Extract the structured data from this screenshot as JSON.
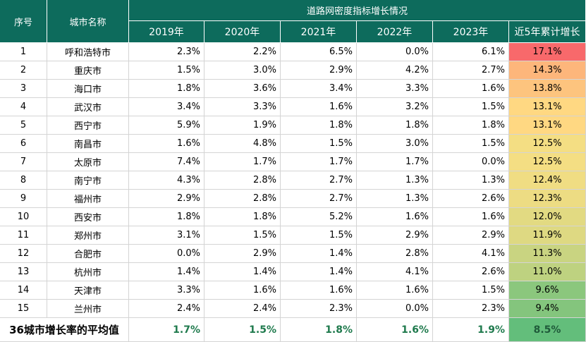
{
  "header": {
    "seq": "序号",
    "city": "城市名称",
    "group": "道路网密度指标增长情况",
    "years": [
      "2019年",
      "2020年",
      "2021年",
      "2022年",
      "2023年"
    ],
    "total": "近5年累计增长"
  },
  "rows": [
    {
      "seq": 1,
      "city": "呼和浩特市",
      "values": [
        2.3,
        2.2,
        6.5,
        0.0,
        6.1
      ],
      "value_labels": [
        "2.3%",
        "2.2%",
        "6.5%",
        "0.0%",
        "6.1%"
      ],
      "total": 17.1,
      "total_label": "17.1%"
    },
    {
      "seq": 2,
      "city": "重庆市",
      "values": [
        1.5,
        3.0,
        2.9,
        4.2,
        2.7
      ],
      "value_labels": [
        "1.5%",
        "3.0%",
        "2.9%",
        "4.2%",
        "2.7%"
      ],
      "total": 14.3,
      "total_label": "14.3%"
    },
    {
      "seq": 3,
      "city": "海口市",
      "values": [
        1.8,
        3.6,
        3.4,
        3.3,
        1.6
      ],
      "value_labels": [
        "1.8%",
        "3.6%",
        "3.4%",
        "3.3%",
        "1.6%"
      ],
      "total": 13.8,
      "total_label": "13.8%"
    },
    {
      "seq": 4,
      "city": "武汉市",
      "values": [
        3.4,
        3.3,
        1.6,
        3.2,
        1.5
      ],
      "value_labels": [
        "3.4%",
        "3.3%",
        "1.6%",
        "3.2%",
        "1.5%"
      ],
      "total": 13.1,
      "total_label": "13.1%"
    },
    {
      "seq": 5,
      "city": "西宁市",
      "values": [
        5.9,
        1.9,
        1.8,
        1.8,
        1.8
      ],
      "value_labels": [
        "5.9%",
        "1.9%",
        "1.8%",
        "1.8%",
        "1.8%"
      ],
      "total": 13.1,
      "total_label": "13.1%"
    },
    {
      "seq": 6,
      "city": "南昌市",
      "values": [
        1.6,
        4.8,
        1.5,
        3.0,
        1.5
      ],
      "value_labels": [
        "1.6%",
        "4.8%",
        "1.5%",
        "3.0%",
        "1.5%"
      ],
      "total": 12.5,
      "total_label": "12.5%"
    },
    {
      "seq": 7,
      "city": "太原市",
      "values": [
        7.4,
        1.7,
        1.7,
        1.7,
        0.0
      ],
      "value_labels": [
        "7.4%",
        "1.7%",
        "1.7%",
        "1.7%",
        "0.0%"
      ],
      "total": 12.5,
      "total_label": "12.5%"
    },
    {
      "seq": 8,
      "city": "南宁市",
      "values": [
        4.3,
        2.8,
        2.7,
        1.3,
        1.3
      ],
      "value_labels": [
        "4.3%",
        "2.8%",
        "2.7%",
        "1.3%",
        "1.3%"
      ],
      "total": 12.4,
      "total_label": "12.4%"
    },
    {
      "seq": 9,
      "city": "福州市",
      "values": [
        2.9,
        2.8,
        2.7,
        1.3,
        2.6
      ],
      "value_labels": [
        "2.9%",
        "2.8%",
        "2.7%",
        "1.3%",
        "2.6%"
      ],
      "total": 12.3,
      "total_label": "12.3%"
    },
    {
      "seq": 10,
      "city": "西安市",
      "values": [
        1.8,
        1.8,
        5.2,
        1.6,
        1.6
      ],
      "value_labels": [
        "1.8%",
        "1.8%",
        "5.2%",
        "1.6%",
        "1.6%"
      ],
      "total": 12.0,
      "total_label": "12.0%"
    },
    {
      "seq": 11,
      "city": "郑州市",
      "values": [
        3.1,
        1.5,
        1.5,
        2.9,
        2.9
      ],
      "value_labels": [
        "3.1%",
        "1.5%",
        "1.5%",
        "2.9%",
        "2.9%"
      ],
      "total": 11.9,
      "total_label": "11.9%"
    },
    {
      "seq": 12,
      "city": "合肥市",
      "values": [
        0.0,
        2.9,
        1.4,
        2.8,
        4.1
      ],
      "value_labels": [
        "0.0%",
        "2.9%",
        "1.4%",
        "2.8%",
        "4.1%"
      ],
      "total": 11.3,
      "total_label": "11.3%"
    },
    {
      "seq": 13,
      "city": "杭州市",
      "values": [
        1.4,
        1.4,
        1.4,
        4.1,
        2.6
      ],
      "value_labels": [
        "1.4%",
        "1.4%",
        "1.4%",
        "4.1%",
        "2.6%"
      ],
      "total": 11.0,
      "total_label": "11.0%"
    },
    {
      "seq": 14,
      "city": "天津市",
      "values": [
        3.3,
        1.6,
        1.6,
        1.6,
        1.5
      ],
      "value_labels": [
        "3.3%",
        "1.6%",
        "1.6%",
        "1.6%",
        "1.5%"
      ],
      "total": 9.6,
      "total_label": "9.6%"
    },
    {
      "seq": 15,
      "city": "兰州市",
      "values": [
        2.4,
        2.4,
        2.3,
        0.0,
        2.3
      ],
      "value_labels": [
        "2.4%",
        "2.4%",
        "2.3%",
        "0.0%",
        "2.3%"
      ],
      "total": 9.4,
      "total_label": "9.4%"
    }
  ],
  "average": {
    "label": "36城市增长率的平均值",
    "values": [
      1.7,
      1.5,
      1.8,
      1.6,
      1.9
    ],
    "value_labels": [
      "1.7%",
      "1.5%",
      "1.8%",
      "1.6%",
      "1.9%"
    ],
    "total": 8.5,
    "total_label": "8.5%"
  }
}
